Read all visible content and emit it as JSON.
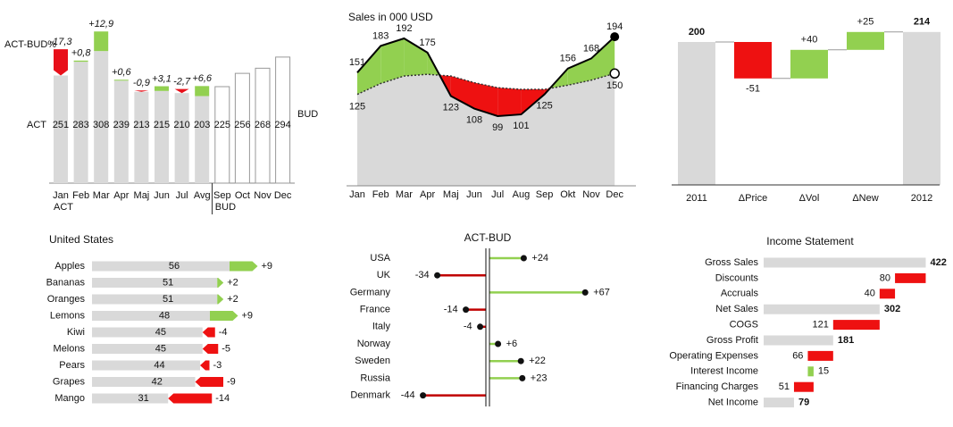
{
  "chart_data": [
    {
      "type": "column",
      "categories": [
        "Jan",
        "Feb",
        "Mar",
        "Apr",
        "Maj",
        "Jun",
        "Jul",
        "Avg",
        "Sep",
        "Oct",
        "Nov",
        "Dec"
      ],
      "series": [
        {
          "name": "ACT",
          "color": "#d9d9d9",
          "values": [
            251,
            283,
            308,
            239,
            213,
            215,
            210,
            203,
            null,
            null,
            null,
            null
          ]
        },
        {
          "name": "BUD",
          "color": "#ffffff",
          "values": [
            null,
            null,
            null,
            null,
            null,
            null,
            null,
            null,
            225,
            256,
            268,
            294
          ]
        }
      ],
      "variance": {
        "name": "ACT-BUD%",
        "values": [
          -17.3,
          0.8,
          12.9,
          0.6,
          -0.9,
          3.1,
          -2.7,
          6.6
        ],
        "value_labels": [
          "-17,3",
          "+0,8",
          "+12,9",
          "+0,6",
          "-0,9",
          "+3,1",
          "-2,7",
          "+6,6"
        ]
      },
      "positive_color": "#92d050",
      "negative_color": "#e8101a"
    },
    {
      "type": "line",
      "title": "Sales in 000 USD",
      "categories": [
        "Jan",
        "Feb",
        "Mar",
        "Apr",
        "Maj",
        "Jun",
        "Jul",
        "Aug",
        "Sep",
        "Okt",
        "Nov",
        "Dec"
      ],
      "series": [
        {
          "color": "#000000",
          "values": [
            151,
            183,
            192,
            175,
            123,
            108,
            99,
            101,
            125,
            156,
            168,
            194
          ]
        },
        {
          "color": "#333333",
          "values": [
            125,
            138,
            147,
            149,
            147,
            139,
            133,
            131,
            131,
            136,
            142,
            150
          ]
        }
      ],
      "area_color": "#d9d9d9",
      "positive_color": "#92d050",
      "negative_color": "#ee1111"
    },
    {
      "type": "waterfall",
      "categories": [
        "2011",
        "ΔPrice",
        "ΔVol",
        "ΔNew",
        "2012"
      ],
      "values": [
        200,
        -51,
        40,
        25,
        214
      ],
      "value_labels": [
        "200",
        "-51",
        "+40",
        "+25",
        "214"
      ],
      "totals": [
        true,
        false,
        false,
        false,
        true
      ],
      "total_color": "#d9d9d9",
      "positive_color": "#92d050",
      "negative_color": "#ee1111"
    },
    {
      "type": "hbar",
      "title": "United States",
      "categories": [
        "Apples",
        "Bananas",
        "Oranges",
        "Lemons",
        "Kiwi",
        "Melons",
        "Pears",
        "Grapes",
        "Mango"
      ],
      "values": [
        56,
        51,
        51,
        48,
        45,
        45,
        44,
        42,
        31
      ],
      "deltas": [
        9,
        2,
        2,
        9,
        -4,
        -5,
        -3,
        -9,
        -14
      ],
      "delta_labels": [
        "+9",
        "+2",
        "+2",
        "+9",
        "-4",
        "-5",
        "-3",
        "-9",
        "-14"
      ],
      "color": "#d9d9d9",
      "positive_color": "#92d050",
      "negative_color": "#ee1111"
    },
    {
      "type": "lollipop",
      "title": "ACT-BUD",
      "categories": [
        "USA",
        "UK",
        "Germany",
        "France",
        "Italy",
        "Norway",
        "Sweden",
        "Russia",
        "Denmark"
      ],
      "values": [
        24,
        -34,
        67,
        -14,
        -4,
        6,
        22,
        23,
        -44
      ],
      "value_labels": [
        "+24",
        "-34",
        "+67",
        "-14",
        "-4",
        "+6",
        "+22",
        "+23",
        "-44"
      ],
      "positive_color": "#92d050",
      "negative_color": "#c00000"
    },
    {
      "type": "hwaterfall",
      "title": "Income Statement",
      "categories": [
        "Gross Sales",
        "Discounts",
        "Accruals",
        "Net Sales",
        "COGS",
        "Gross Profit",
        "Operating Expenses",
        "Interest Income",
        "Financing Charges",
        "Net Income"
      ],
      "values": [
        422,
        80,
        40,
        302,
        121,
        181,
        66,
        15,
        51,
        79
      ],
      "kinds": [
        "total",
        "minus",
        "minus",
        "total",
        "minus",
        "total",
        "minus",
        "plus",
        "minus",
        "total"
      ],
      "total_color": "#d9d9d9",
      "positive_color": "#92d050",
      "negative_color": "#ee1111"
    }
  ]
}
